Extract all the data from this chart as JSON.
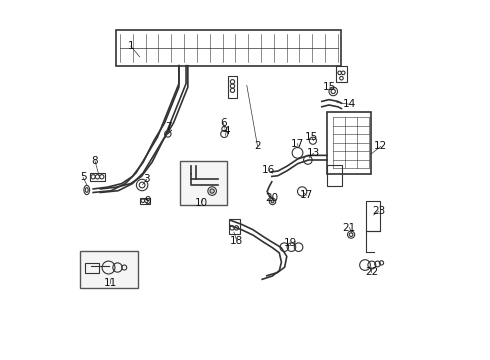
{
  "bg_color": "#ffffff",
  "line_color": "#333333",
  "figsize": [
    4.9,
    3.6
  ],
  "dpi": 100,
  "labels_data": [
    [
      1,
      0.18,
      0.875,
      0.205,
      0.845
    ],
    [
      2,
      0.535,
      0.595,
      0.505,
      0.765
    ],
    [
      3,
      0.225,
      0.502,
      0.213,
      0.487
    ],
    [
      4,
      0.448,
      0.637,
      0.445,
      0.625
    ],
    [
      5,
      0.047,
      0.507,
      0.057,
      0.487
    ],
    [
      6,
      0.44,
      0.66,
      0.442,
      0.645
    ],
    [
      7,
      0.287,
      0.648,
      0.285,
      0.635
    ],
    [
      8,
      0.08,
      0.554,
      0.092,
      0.51
    ],
    [
      9,
      0.228,
      0.442,
      0.222,
      0.448
    ],
    [
      10,
      0.378,
      0.437,
      0.382,
      0.447
    ],
    [
      11,
      0.122,
      0.212,
      0.122,
      0.222
    ],
    [
      12,
      0.88,
      0.594,
      0.852,
      0.572
    ],
    [
      13,
      0.692,
      0.575,
      0.68,
      0.562
    ],
    [
      14,
      0.792,
      0.712,
      0.757,
      0.717
    ],
    [
      15,
      0.737,
      0.76,
      0.747,
      0.754
    ],
    [
      15,
      0.687,
      0.619,
      0.692,
      0.61
    ],
    [
      16,
      0.567,
      0.527,
      0.577,
      0.519
    ],
    [
      17,
      0.647,
      0.602,
      0.649,
      0.59
    ],
    [
      17,
      0.672,
      0.457,
      0.662,
      0.467
    ],
    [
      18,
      0.477,
      0.33,
      0.469,
      0.354
    ],
    [
      19,
      0.627,
      0.324,
      0.627,
      0.317
    ],
    [
      20,
      0.574,
      0.45,
      0.578,
      0.445
    ],
    [
      21,
      0.792,
      0.367,
      0.799,
      0.352
    ],
    [
      22,
      0.854,
      0.242,
      0.854,
      0.257
    ],
    [
      23,
      0.874,
      0.412,
      0.86,
      0.402
    ]
  ]
}
